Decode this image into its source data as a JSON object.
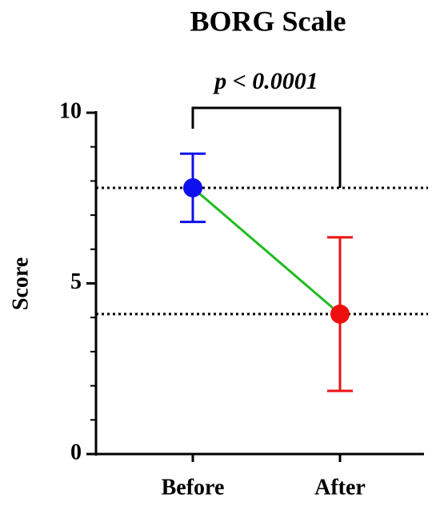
{
  "chart_data": {
    "type": "line",
    "title": "BORG Scale",
    "y_label": "Score",
    "categories": [
      "Before",
      "After"
    ],
    "values": [
      7.8,
      4.1
    ],
    "errors": [
      1.0,
      2.25
    ],
    "point_colors": [
      "#1010ee",
      "#ee1010"
    ],
    "line_color": "#22bb22",
    "ylim": [
      0,
      10
    ],
    "yticks": [
      0,
      5,
      10
    ],
    "minor_yticks": [
      1,
      2,
      3,
      4,
      6,
      7,
      8,
      9
    ],
    "reference_lines": true,
    "annotation": "p < 0.0001",
    "annotation_color": "#e00000"
  }
}
